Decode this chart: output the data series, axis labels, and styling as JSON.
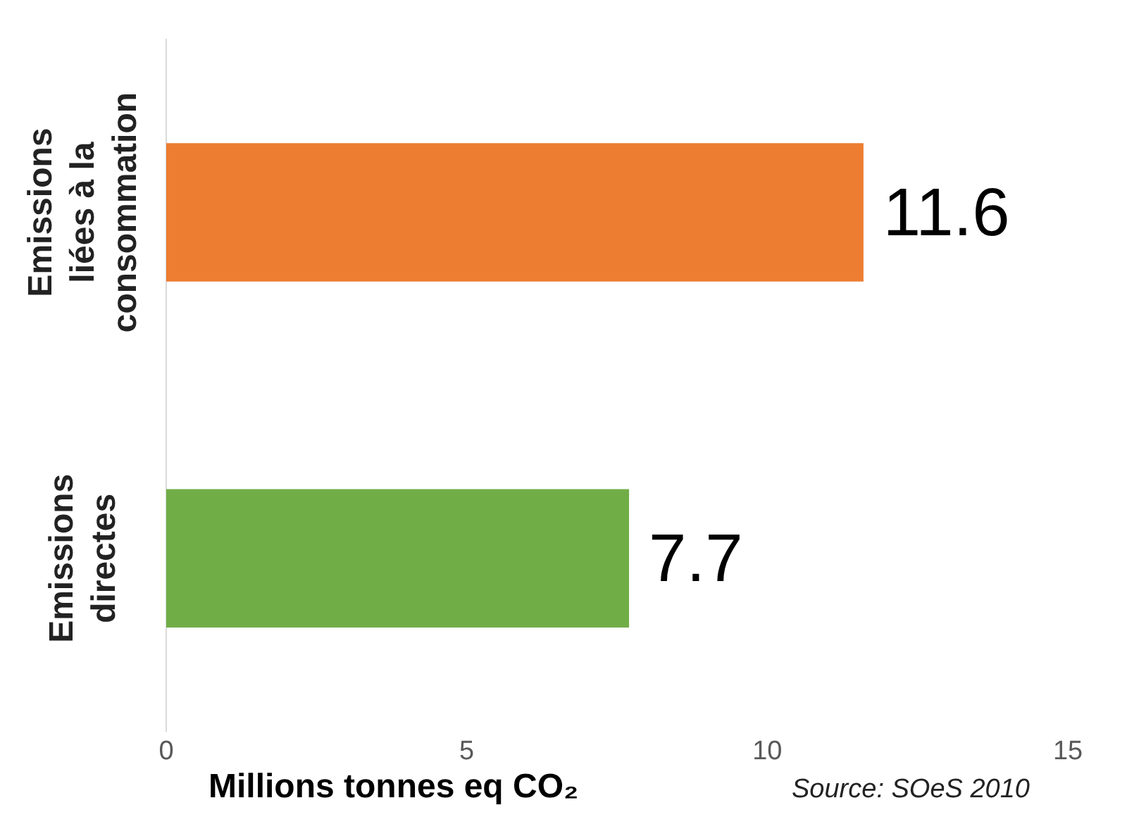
{
  "chart_data": {
    "type": "bar",
    "orientation": "horizontal",
    "categories": [
      "Emissions liées à la consommation",
      "Emissions directes"
    ],
    "values": [
      11.6,
      7.7
    ],
    "colors": [
      "#ed7d31",
      "#70ad47"
    ],
    "xlim": [
      0,
      15
    ],
    "xticks": [
      0,
      5,
      10,
      15
    ],
    "xlabel": "Millions tonnes eq CO₂",
    "annotations": [
      "Source: SOeS 2010"
    ],
    "data_labels": true,
    "grid": false,
    "legend": false
  }
}
